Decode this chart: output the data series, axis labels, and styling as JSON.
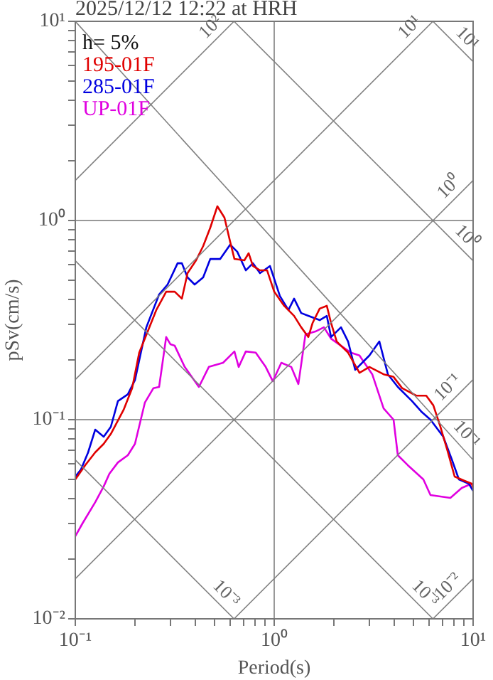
{
  "chart_data": {
    "type": "line",
    "title": "2025/12/12 12:22 at HRH",
    "xlabel": "Period(s)",
    "ylabel": "pSv(cm/s)",
    "annotations": [
      "h= 5%"
    ],
    "log": "xy",
    "grid": true,
    "legend": "top left",
    "marker": "none",
    "xlim": [
      0.1,
      10
    ],
    "ylim": [
      0.01,
      10
    ],
    "xticks": [
      {
        "value": 0.1,
        "label": "10⁻¹"
      },
      {
        "value": 0.2,
        "label": null
      },
      {
        "value": 0.3,
        "label": null
      },
      {
        "value": 0.4,
        "label": null
      },
      {
        "value": 0.5,
        "label": null
      },
      {
        "value": 0.6,
        "label": null
      },
      {
        "value": 0.7,
        "label": null
      },
      {
        "value": 0.8,
        "label": null
      },
      {
        "value": 0.9,
        "label": null
      },
      {
        "value": 1,
        "label": "10⁰"
      },
      {
        "value": 2,
        "label": null
      },
      {
        "value": 3,
        "label": null
      },
      {
        "value": 4,
        "label": null
      },
      {
        "value": 5,
        "label": null
      },
      {
        "value": 6,
        "label": null
      },
      {
        "value": 7,
        "label": null
      },
      {
        "value": 8,
        "label": null
      },
      {
        "value": 9,
        "label": null
      },
      {
        "value": 10,
        "label": "10¹"
      }
    ],
    "yticks": [
      {
        "value": 0.01,
        "label": "10⁻²"
      },
      {
        "value": 0.02,
        "label": null
      },
      {
        "value": 0.03,
        "label": null
      },
      {
        "value": 0.04,
        "label": null
      },
      {
        "value": 0.05,
        "label": null
      },
      {
        "value": 0.06,
        "label": null
      },
      {
        "value": 0.07,
        "label": null
      },
      {
        "value": 0.08,
        "label": null
      },
      {
        "value": 0.09,
        "label": null
      },
      {
        "value": 0.1,
        "label": "10⁻¹"
      },
      {
        "value": 0.2,
        "label": null
      },
      {
        "value": 0.3,
        "label": null
      },
      {
        "value": 0.4,
        "label": null
      },
      {
        "value": 0.5,
        "label": null
      },
      {
        "value": 0.6,
        "label": null
      },
      {
        "value": 0.7,
        "label": null
      },
      {
        "value": 0.8,
        "label": null
      },
      {
        "value": 0.9,
        "label": null
      },
      {
        "value": 1,
        "label": "10⁰"
      },
      {
        "value": 2,
        "label": null
      },
      {
        "value": 3,
        "label": null
      },
      {
        "value": 4,
        "label": null
      },
      {
        "value": 5,
        "label": null
      },
      {
        "value": 6,
        "label": null
      },
      {
        "value": 7,
        "label": null
      },
      {
        "value": 8,
        "label": null
      },
      {
        "value": 9,
        "label": null
      },
      {
        "value": 10,
        "label": "10¹"
      }
    ],
    "series": [
      {
        "type": "line",
        "name": "10²",
        "color": "#808080",
        "x": [
          0.1,
          0.628
        ],
        "values": [
          1.59,
          10
        ]
      },
      {
        "type": "line",
        "name": "10¹",
        "color": "#808080",
        "x": [
          0.1,
          6.28
        ],
        "values": [
          0.159,
          10
        ]
      },
      {
        "type": "line",
        "name": "10⁰",
        "color": "#808080",
        "x": [
          0.1,
          10
        ],
        "values": [
          0.0159,
          1.59
        ]
      },
      {
        "type": "line",
        "name": "10⁻¹",
        "color": "#808080",
        "x": [
          0.628,
          10
        ],
        "values": [
          0.01,
          0.159
        ]
      },
      {
        "type": "line",
        "name": "10⁻²",
        "color": "#808080",
        "x": [
          6.28,
          10
        ],
        "values": [
          0.01,
          0.0159
        ]
      },
      {
        "type": "line",
        "name": "10¹",
        "color": "#808080",
        "x": [
          6.28,
          10
        ],
        "values": [
          10,
          6.28
        ]
      },
      {
        "type": "line",
        "name": "10⁰",
        "color": "#808080",
        "x": [
          0.628,
          10
        ],
        "values": [
          10,
          0.628
        ]
      },
      {
        "type": "line",
        "name": "10⁻¹",
        "color": "#808080",
        "x": [
          0.1,
          10
        ],
        "values": [
          10,
          0.0628
        ]
      },
      {
        "type": "line",
        "name": "10⁻³",
        "color": "#808080",
        "x": [
          0.1,
          6.28
        ],
        "values": [
          0.628,
          0.01
        ]
      },
      {
        "type": "line",
        "name": "10⁻³",
        "color": "#808080",
        "x": [
          0.1,
          0.628
        ],
        "values": [
          0.0628,
          0.01
        ]
      },
      {
        "name": "195-01F",
        "color": "#e00000",
        "x": [
          0.1,
          0.1122,
          0.1259,
          0.1389,
          0.1509,
          0.1749,
          0.1931,
          0.2096,
          0.2553,
          0.2864,
          0.3162,
          0.3433,
          0.3667,
          0.4047,
          0.4394,
          0.4772,
          0.5179,
          0.5623,
          0.6005,
          0.631,
          0.7079,
          0.7438,
          0.7816,
          0.8483,
          0.9211,
          1,
          1.122,
          1.259,
          1.367,
          1.484,
          1.56,
          1.693,
          1.838,
          1.931,
          2.062,
          2.167,
          2.352,
          2.683,
          3.01,
          3.548,
          3.981,
          4.394,
          5.179,
          5.812,
          6.31,
          6.85,
          7.438,
          8.075,
          9.061,
          9.84,
          10
        ],
        "values": [
          0.0501,
          0.0591,
          0.0685,
          0.0756,
          0.0848,
          0.112,
          0.144,
          0.217,
          0.355,
          0.439,
          0.439,
          0.405,
          0.544,
          0.631,
          0.744,
          0.921,
          1.179,
          1.033,
          0.782,
          0.641,
          0.631,
          0.685,
          0.591,
          0.562,
          0.562,
          0.439,
          0.373,
          0.332,
          0.291,
          0.26,
          0.306,
          0.361,
          0.373,
          0.306,
          0.247,
          0.235,
          0.217,
          0.172,
          0.184,
          0.169,
          0.164,
          0.144,
          0.132,
          0.132,
          0.118,
          0.0921,
          0.0697,
          0.0518,
          0.0493,
          0.0477,
          0.0454
        ]
      },
      {
        "name": "285-01F",
        "color": "#0000e0",
        "x": [
          0.1,
          0.1068,
          0.116,
          0.1259,
          0.1389,
          0.1509,
          0.1638,
          0.1837,
          0.1995,
          0.2276,
          0.2638,
          0.2911,
          0.3268,
          0.3433,
          0.3667,
          0.3981,
          0.4394,
          0.4772,
          0.5353,
          0.6005,
          0.652,
          0.7197,
          0.7816,
          0.8483,
          0.9519,
          1.068,
          1.179,
          1.259,
          1.367,
          1.484,
          1.693,
          1.838,
          1.931,
          2.167,
          2.352,
          2.554,
          3.01,
          3.378,
          3.728,
          4.183,
          4.931,
          5.533,
          6.105,
          7.079,
          7.816,
          8.483,
          9.52,
          10
        ],
        "values": [
          0.0518,
          0.0562,
          0.0685,
          0.0891,
          0.0821,
          0.0921,
          0.124,
          0.134,
          0.158,
          0.291,
          0.425,
          0.477,
          0.61,
          0.61,
          0.518,
          0.477,
          0.518,
          0.641,
          0.641,
          0.756,
          0.697,
          0.562,
          0.61,
          0.544,
          0.591,
          0.418,
          0.355,
          0.405,
          0.343,
          0.332,
          0.316,
          0.332,
          0.26,
          0.291,
          0.247,
          0.178,
          0.21,
          0.247,
          0.169,
          0.146,
          0.124,
          0.109,
          0.1,
          0.0821,
          0.0631,
          0.0501,
          0.0477,
          0.0439
        ]
      },
      {
        "name": "UP-01F",
        "color": "#e000e0",
        "x": [
          0.1,
          0.1086,
          0.1259,
          0.1389,
          0.1484,
          0.1638,
          0.1837,
          0.1995,
          0.2239,
          0.2471,
          0.2638,
          0.2864,
          0.301,
          0.3162,
          0.3548,
          0.4182,
          0.4692,
          0.5533,
          0.631,
          0.6629,
          0.7197,
          0.8075,
          0.9061,
          0.9837,
          1.086,
          1.218,
          1.323,
          1.436,
          1.611,
          1.778,
          1.931,
          2.167,
          2.43,
          2.683,
          3.111,
          3.548,
          3.981,
          4.183,
          4.692,
          5.623,
          6.105,
          7.688,
          8.767,
          9.84
        ],
        "values": [
          0.026,
          0.0301,
          0.0385,
          0.0462,
          0.0535,
          0.061,
          0.0663,
          0.0756,
          0.122,
          0.144,
          0.146,
          0.26,
          0.239,
          0.235,
          0.184,
          0.146,
          0.184,
          0.193,
          0.22,
          0.184,
          0.22,
          0.217,
          0.184,
          0.156,
          0.193,
          0.184,
          0.151,
          0.268,
          0.277,
          0.291,
          0.255,
          0.235,
          0.217,
          0.21,
          0.169,
          0.114,
          0.1,
          0.0663,
          0.0591,
          0.0501,
          0.0418,
          0.0405,
          0.0454,
          0.0477
        ]
      }
    ]
  }
}
